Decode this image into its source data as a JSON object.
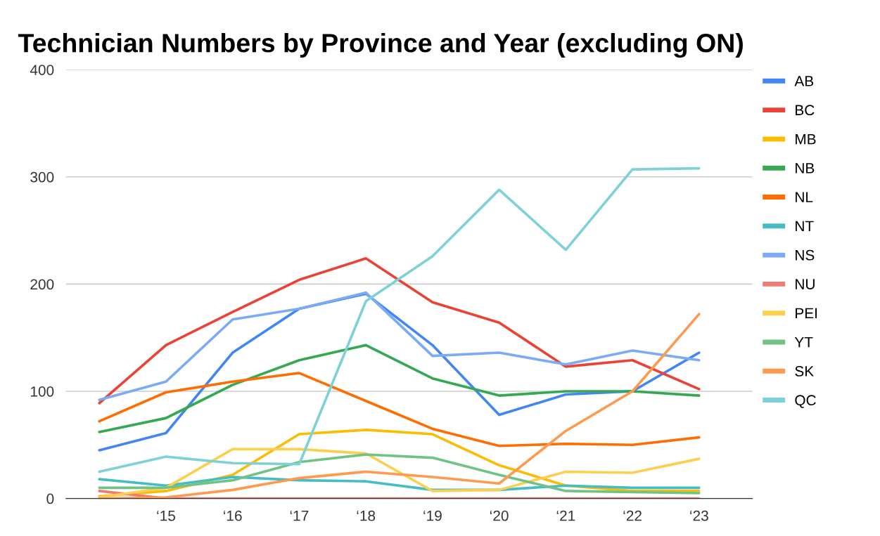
{
  "chart_data": {
    "type": "line",
    "title": "Technician Numbers by Province and Year (excluding ON)",
    "categories": [
      null,
      "‘15",
      "‘16",
      "‘17",
      "‘18",
      "‘19",
      "‘20",
      "‘21",
      "‘22",
      "‘23"
    ],
    "ylim": [
      0,
      400
    ],
    "yticks": [
      0,
      100,
      200,
      300,
      400
    ],
    "grid": "y",
    "legend": "right",
    "marker": "none",
    "line_style": "solid",
    "series": [
      {
        "name": "AB",
        "color": "#4285f4",
        "values": [
          45,
          61,
          136,
          177,
          191,
          143,
          78,
          97,
          100,
          136
        ]
      },
      {
        "name": "BC",
        "color": "#ea4335",
        "values": [
          89,
          143,
          174,
          204,
          224,
          183,
          164,
          123,
          129,
          102
        ]
      },
      {
        "name": "MB",
        "color": "#fbbc04",
        "values": [
          2,
          7,
          22,
          60,
          64,
          60,
          31,
          12,
          7,
          7
        ]
      },
      {
        "name": "NB",
        "color": "#34a853",
        "values": [
          62,
          75,
          106,
          129,
          143,
          112,
          96,
          100,
          100,
          96
        ]
      },
      {
        "name": "NL",
        "color": "#ff6d01",
        "values": [
          72,
          99,
          109,
          117,
          91,
          65,
          49,
          51,
          50,
          57
        ]
      },
      {
        "name": "NT",
        "color": "#46bdc6",
        "values": [
          18,
          12,
          20,
          17,
          16,
          8,
          8,
          12,
          10,
          10
        ]
      },
      {
        "name": "NS",
        "color": "#7baaf7",
        "values": [
          92,
          109,
          167,
          177,
          192,
          133,
          136,
          125,
          138,
          129
        ]
      },
      {
        "name": "NU",
        "color": "#f07b72",
        "values": [
          7,
          0,
          0,
          0,
          0,
          0,
          0,
          0,
          0,
          0
        ]
      },
      {
        "name": "PEI",
        "color": "#fcd04f",
        "values": [
          1,
          10,
          46,
          46,
          42,
          7,
          8,
          25,
          24,
          37
        ]
      },
      {
        "name": "YT",
        "color": "#71c287",
        "values": [
          10,
          10,
          17,
          34,
          41,
          38,
          22,
          7,
          6,
          5
        ]
      },
      {
        "name": "SK",
        "color": "#ff994d",
        "values": [
          0,
          1,
          8,
          19,
          25,
          20,
          14,
          63,
          100,
          172
        ]
      },
      {
        "name": "QC",
        "color": "#7ed1d7",
        "values": [
          25,
          39,
          33,
          32,
          184,
          226,
          288,
          232,
          307,
          308
        ]
      }
    ]
  }
}
